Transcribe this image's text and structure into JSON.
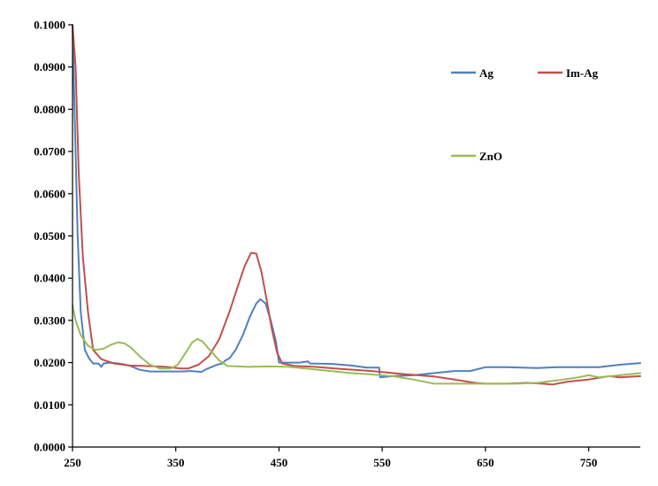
{
  "chart_data": {
    "type": "line",
    "title": "",
    "xlabel": "",
    "ylabel": "",
    "xlim": [
      250,
      800
    ],
    "ylim": [
      0,
      0.1
    ],
    "x_ticks": [
      "250",
      "350",
      "450",
      "550",
      "650",
      "750"
    ],
    "y_ticks": [
      "0.0000",
      "0.0100",
      "0.0200",
      "0.0300",
      "0.0400",
      "0.0500",
      "0.0600",
      "0.0700",
      "0.0800",
      "0.0900",
      "0.1000"
    ],
    "grid": false,
    "legend_position": "top-right",
    "series": [
      {
        "name": "Ag",
        "color": "#4F81BD",
        "points": [
          [
            250,
            0.1
          ],
          [
            252,
            0.08
          ],
          [
            255,
            0.05
          ],
          [
            258,
            0.032
          ],
          [
            262,
            0.023
          ],
          [
            266,
            0.021
          ],
          [
            270,
            0.0198
          ],
          [
            275,
            0.0198
          ],
          [
            278,
            0.019
          ],
          [
            280,
            0.0198
          ],
          [
            285,
            0.02
          ],
          [
            295,
            0.0198
          ],
          [
            305,
            0.0193
          ],
          [
            315,
            0.0183
          ],
          [
            325,
            0.0179
          ],
          [
            340,
            0.0179
          ],
          [
            355,
            0.0179
          ],
          [
            365,
            0.018
          ],
          [
            375,
            0.0178
          ],
          [
            380,
            0.0185
          ],
          [
            385,
            0.019
          ],
          [
            390,
            0.0195
          ],
          [
            395,
            0.0198
          ],
          [
            398,
            0.0205
          ],
          [
            402,
            0.021
          ],
          [
            408,
            0.023
          ],
          [
            415,
            0.0265
          ],
          [
            422,
            0.031
          ],
          [
            428,
            0.034
          ],
          [
            432,
            0.035
          ],
          [
            437,
            0.034
          ],
          [
            442,
            0.03
          ],
          [
            447,
            0.025
          ],
          [
            450,
            0.02
          ],
          [
            460,
            0.02
          ],
          [
            470,
            0.02
          ],
          [
            478,
            0.0203
          ],
          [
            480,
            0.0198
          ],
          [
            500,
            0.0197
          ],
          [
            520,
            0.0193
          ],
          [
            535,
            0.0188
          ],
          [
            547,
            0.0188
          ],
          [
            548,
            0.0165
          ],
          [
            560,
            0.0168
          ],
          [
            580,
            0.017
          ],
          [
            600,
            0.0175
          ],
          [
            620,
            0.018
          ],
          [
            635,
            0.018
          ],
          [
            650,
            0.0189
          ],
          [
            670,
            0.0189
          ],
          [
            700,
            0.0187
          ],
          [
            720,
            0.0189
          ],
          [
            760,
            0.0189
          ],
          [
            780,
            0.0195
          ],
          [
            800,
            0.0199
          ]
        ]
      },
      {
        "name": "Im-Ag",
        "color": "#C0504D",
        "points": [
          [
            250,
            0.1
          ],
          [
            253,
            0.09
          ],
          [
            256,
            0.065
          ],
          [
            260,
            0.045
          ],
          [
            265,
            0.032
          ],
          [
            270,
            0.023
          ],
          [
            278,
            0.0208
          ],
          [
            290,
            0.0198
          ],
          [
            305,
            0.0193
          ],
          [
            320,
            0.0192
          ],
          [
            340,
            0.019
          ],
          [
            355,
            0.0186
          ],
          [
            362,
            0.0186
          ],
          [
            372,
            0.0195
          ],
          [
            382,
            0.0215
          ],
          [
            392,
            0.0255
          ],
          [
            402,
            0.032
          ],
          [
            410,
            0.038
          ],
          [
            417,
            0.043
          ],
          [
            423,
            0.046
          ],
          [
            428,
            0.0458
          ],
          [
            433,
            0.0415
          ],
          [
            438,
            0.035
          ],
          [
            443,
            0.028
          ],
          [
            448,
            0.0225
          ],
          [
            453,
            0.0198
          ],
          [
            465,
            0.0192
          ],
          [
            485,
            0.019
          ],
          [
            510,
            0.0185
          ],
          [
            540,
            0.018
          ],
          [
            570,
            0.0173
          ],
          [
            600,
            0.0167
          ],
          [
            620,
            0.016
          ],
          [
            640,
            0.0152
          ],
          [
            650,
            0.015
          ],
          [
            670,
            0.015
          ],
          [
            690,
            0.0152
          ],
          [
            705,
            0.015
          ],
          [
            715,
            0.0148
          ],
          [
            730,
            0.0155
          ],
          [
            750,
            0.016
          ],
          [
            770,
            0.0168
          ],
          [
            780,
            0.0165
          ],
          [
            800,
            0.0168
          ]
        ]
      },
      {
        "name": "ZnO",
        "color": "#9BBB59",
        "points": [
          [
            250,
            0.0335
          ],
          [
            253,
            0.03
          ],
          [
            258,
            0.0265
          ],
          [
            265,
            0.024
          ],
          [
            272,
            0.023
          ],
          [
            280,
            0.0233
          ],
          [
            287,
            0.0242
          ],
          [
            294,
            0.0248
          ],
          [
            300,
            0.0246
          ],
          [
            307,
            0.0235
          ],
          [
            315,
            0.0215
          ],
          [
            325,
            0.0195
          ],
          [
            335,
            0.0186
          ],
          [
            345,
            0.0186
          ],
          [
            352,
            0.0195
          ],
          [
            360,
            0.0225
          ],
          [
            366,
            0.0248
          ],
          [
            371,
            0.0256
          ],
          [
            376,
            0.025
          ],
          [
            383,
            0.023
          ],
          [
            392,
            0.0205
          ],
          [
            400,
            0.0192
          ],
          [
            420,
            0.019
          ],
          [
            440,
            0.0191
          ],
          [
            460,
            0.019
          ],
          [
            480,
            0.0185
          ],
          [
            500,
            0.018
          ],
          [
            520,
            0.0175
          ],
          [
            540,
            0.0172
          ],
          [
            560,
            0.0168
          ],
          [
            580,
            0.016
          ],
          [
            600,
            0.015
          ],
          [
            620,
            0.015
          ],
          [
            650,
            0.015
          ],
          [
            680,
            0.015
          ],
          [
            700,
            0.0152
          ],
          [
            720,
            0.0158
          ],
          [
            740,
            0.0165
          ],
          [
            750,
            0.017
          ],
          [
            760,
            0.0165
          ],
          [
            780,
            0.017
          ],
          [
            800,
            0.0175
          ]
        ]
      }
    ]
  }
}
